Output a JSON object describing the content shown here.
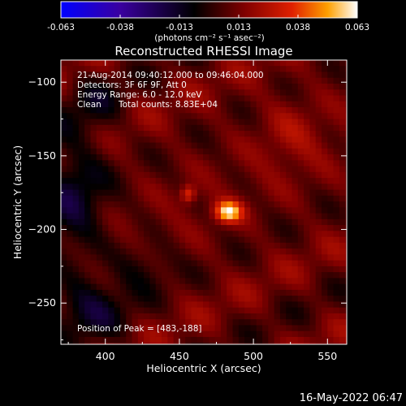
{
  "chart_data": {
    "type": "heatmap",
    "title": "Reconstructed RHESSI Image",
    "xlabel": "Heliocentric X (arcsec)",
    "ylabel": "Heliocentric Y (arcsec)",
    "xlim": [
      370,
      563
    ],
    "ylim": [
      -278,
      -85
    ],
    "x_ticks": [
      400,
      450,
      500,
      550
    ],
    "y_ticks": [
      -100,
      -150,
      -200,
      -250
    ],
    "colorbar": {
      "min": -0.063,
      "max": 0.063,
      "ticks": [
        "-0.063",
        "-0.038",
        "-0.013",
        "0.013",
        "0.038",
        "0.063"
      ],
      "unit_label": "(photons cm⁻² s⁻¹ asec⁻²)",
      "colors": [
        "#0000ff",
        "#3a00a0",
        "#000000",
        "#800000",
        "#e02000",
        "#ffa000",
        "#ffffff"
      ]
    },
    "annotations": [
      "21-Aug-2014 09:40:12.000 to 09:46:04.000",
      "Detectors: 3F 6F 9F, Att 0",
      "Energy Range: 6.0 - 12.0 keV",
      "Clean",
      "Total counts: 8.83E+04"
    ],
    "peak_label": "Position of Peak = [483,-188]",
    "peak": {
      "x": 483,
      "y": -188,
      "value": 0.063
    },
    "secondary_source": {
      "x": 456,
      "y": -176,
      "value": 0.045
    },
    "timestamp": "16-May-2022 06:47"
  }
}
